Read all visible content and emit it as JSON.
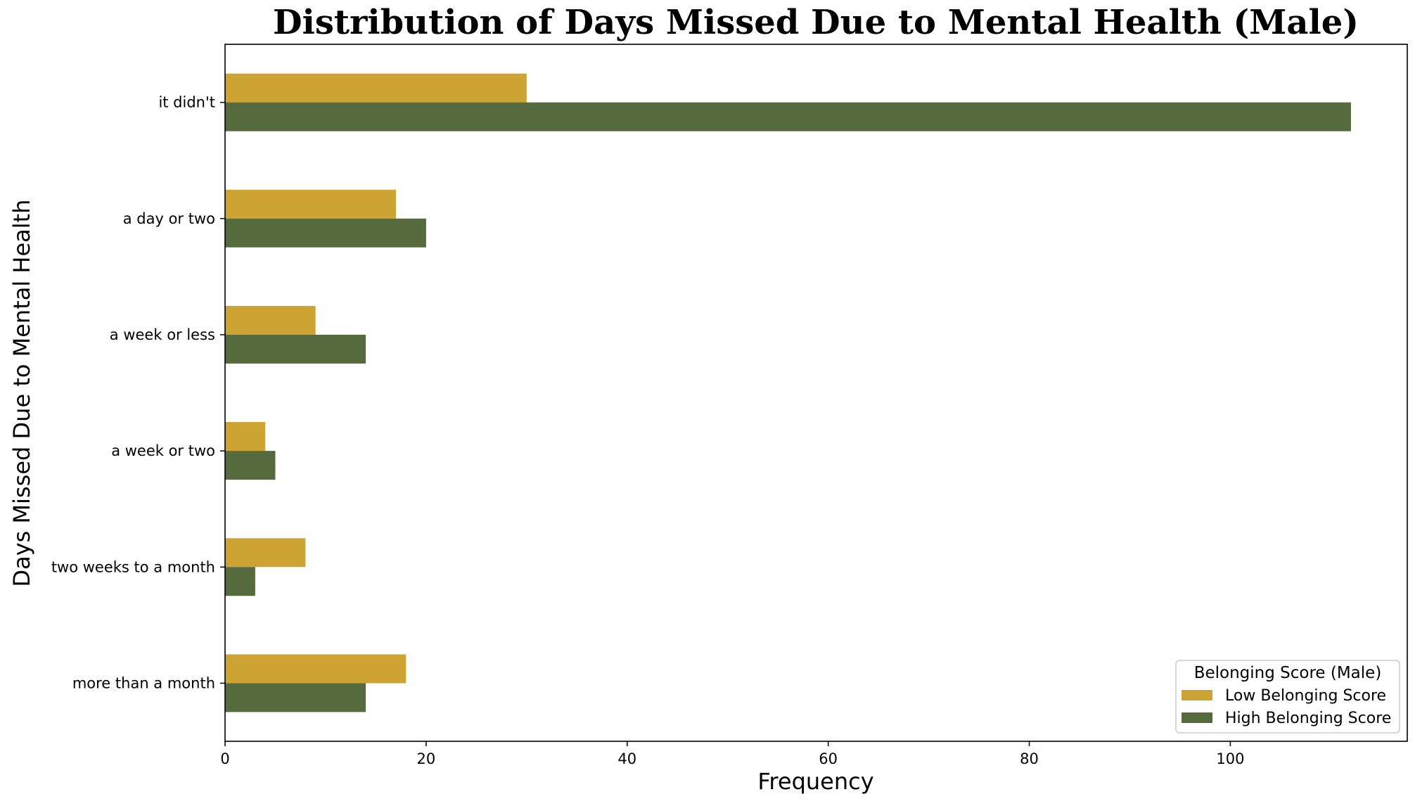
{
  "chart_data": {
    "type": "bar",
    "orientation": "horizontal",
    "title": "Distribution of Days Missed Due to Mental Health (Male)",
    "xlabel": "Frequency",
    "ylabel": "Days Missed Due to Mental Health",
    "categories": [
      "it didn't",
      "a day or two",
      "a week or less",
      "a week or two",
      "two weeks to a month",
      "more than a month"
    ],
    "series": [
      {
        "name": "Low Belonging Score",
        "color": "#CDA434",
        "values": [
          30,
          17,
          9,
          4,
          8,
          18
        ]
      },
      {
        "name": "High Belonging Score",
        "color": "#556B3E",
        "values": [
          112,
          20,
          14,
          5,
          3,
          14
        ]
      }
    ],
    "xlim": [
      0,
      117.6
    ],
    "xticks": [
      0,
      20,
      40,
      60,
      80,
      100
    ],
    "grid": false,
    "legend": {
      "title": "Belonging Score (Male)",
      "placement": "lower-right"
    }
  }
}
